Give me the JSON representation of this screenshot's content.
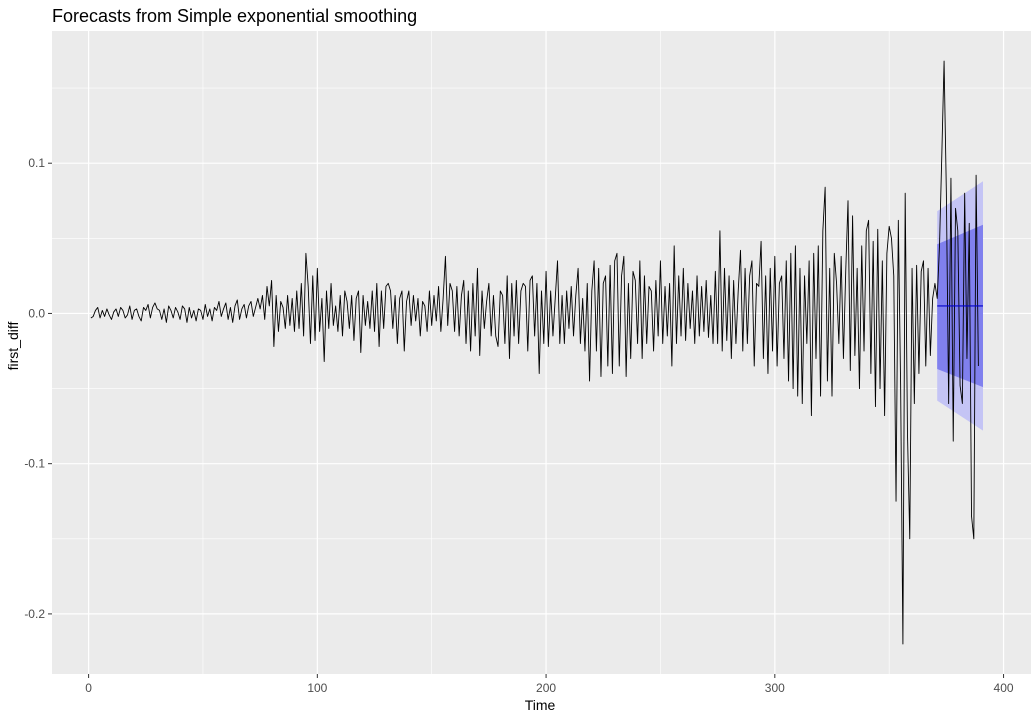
{
  "chart_data": {
    "type": "line",
    "title": "Forecasts from Simple exponential smoothing",
    "xlabel": "Time",
    "ylabel": "first_diff",
    "xlim": [
      -16,
      412
    ],
    "ylim": [
      -0.24,
      0.188
    ],
    "x_ticks": [
      {
        "value": 0,
        "label": "0"
      },
      {
        "value": 100,
        "label": "100"
      },
      {
        "value": 200,
        "label": "200"
      },
      {
        "value": 300,
        "label": "300"
      },
      {
        "value": 400,
        "label": "400"
      }
    ],
    "y_ticks": [
      {
        "value": -0.2,
        "label": "-0.2"
      },
      {
        "value": -0.1,
        "label": "-0.1"
      },
      {
        "value": 0.0,
        "label": "0.0"
      },
      {
        "value": 0.1,
        "label": "0.1"
      }
    ],
    "x_minor": [
      50,
      150,
      250,
      350
    ],
    "y_minor": [
      -0.15,
      -0.05,
      0.05,
      0.15
    ],
    "grid": true,
    "panel_color": "#ebebeb",
    "grid_color": "#ffffff",
    "series_color": "#000000",
    "forecast_color": "#0000cc",
    "band95_color": "#c4c4f5",
    "band80_color": "#8080ee",
    "series": [
      {
        "x_start": 1,
        "x_step": 1,
        "values": [
          -0.003,
          -0.002,
          0.002,
          0.004,
          -0.003,
          0.002,
          -0.002,
          0.003,
          -0.001,
          -0.004,
          0.001,
          0.003,
          -0.002,
          0.004,
          0.002,
          -0.003,
          -0.001,
          0.005,
          -0.004,
          0.002,
          0.003,
          -0.002,
          -0.005,
          0.004,
          0.002,
          0.006,
          -0.003,
          0.004,
          0.007,
          0.003,
          0.002,
          -0.004,
          0.003,
          -0.006,
          0.005,
          0.002,
          -0.003,
          0.004,
          0.001,
          -0.004,
          0.005,
          0.003,
          -0.006,
          0.004,
          -0.003,
          0.002,
          -0.005,
          0.003,
          0.002,
          -0.004,
          0.006,
          -0.002,
          0.003,
          -0.005,
          0.004,
          0.002,
          0.008,
          -0.002,
          0.003,
          0.007,
          -0.004,
          0.004,
          -0.006,
          0.005,
          0.009,
          -0.004,
          0.003,
          0.006,
          -0.003,
          0.005,
          0.008,
          -0.002,
          0.004,
          0.01,
          0.003,
          0.012,
          -0.004,
          0.018,
          0.005,
          0.022,
          -0.022,
          0.012,
          -0.012,
          0.008,
          0.004,
          -0.01,
          0.012,
          -0.008,
          0.01,
          -0.012,
          0.015,
          -0.01,
          0.02,
          -0.015,
          0.04,
          0.018,
          -0.02,
          0.025,
          -0.018,
          0.03,
          -0.012,
          0.01,
          -0.032,
          0.015,
          -0.01,
          0.02,
          -0.008,
          0.005,
          -0.012,
          0.012,
          -0.015,
          0.015,
          0.008,
          -0.01,
          0.012,
          -0.018,
          0.01,
          0.015,
          -0.026,
          0.012,
          -0.008,
          0.008,
          -0.01,
          0.015,
          -0.012,
          0.02,
          -0.022,
          0.015,
          -0.01,
          0.018,
          0.02,
          0.015,
          -0.01,
          0.012,
          -0.02,
          0.01,
          0.015,
          -0.025,
          0.008,
          0.015,
          -0.008,
          0.012,
          -0.005,
          0.01,
          -0.015,
          0.008,
          0.005,
          -0.012,
          0.015,
          -0.008,
          0.012,
          -0.005,
          0.018,
          -0.012,
          0.01,
          0.038,
          -0.008,
          0.02,
          0.015,
          -0.012,
          0.018,
          -0.015,
          0.012,
          0.022,
          -0.02,
          0.015,
          -0.025,
          0.02,
          -0.015,
          0.03,
          -0.028,
          0.015,
          -0.01,
          0.008,
          0.02,
          -0.015,
          0.012,
          -0.015,
          -0.022,
          0.015,
          0.012,
          -0.02,
          0.025,
          -0.03,
          0.02,
          -0.015,
          0.022,
          -0.02,
          0.015,
          0.02,
          0.018,
          -0.025,
          0.022,
          0.025,
          -0.015,
          0.02,
          -0.04,
          0.015,
          -0.02,
          0.028,
          -0.022,
          0.015,
          -0.015,
          0.01,
          0.035,
          -0.02,
          0.012,
          -0.02,
          0.015,
          -0.01,
          0.018,
          -0.015,
          0.012,
          0.03,
          -0.02,
          0.01,
          -0.025,
          0.02,
          -0.045,
          0.015,
          0.035,
          -0.025,
          0.03,
          -0.042,
          0.02,
          0.025,
          -0.035,
          0.032,
          -0.04,
          0.035,
          0.04,
          -0.035,
          0.025,
          0.038,
          -0.042,
          0.02,
          -0.03,
          0.028,
          0.022,
          -0.02,
          0.035,
          -0.03,
          0.025,
          -0.02,
          0.018,
          0.015,
          -0.025,
          0.022,
          -0.015,
          0.035,
          -0.02,
          0.018,
          -0.015,
          0.02,
          -0.035,
          0.045,
          -0.02,
          0.025,
          -0.015,
          0.03,
          -0.018,
          0.02,
          -0.01,
          0.015,
          -0.02,
          0.025,
          -0.015,
          0.018,
          -0.012,
          0.022,
          -0.016,
          0.012,
          -0.02,
          0.028,
          -0.02,
          0.055,
          -0.025,
          0.03,
          -0.018,
          0.025,
          -0.03,
          0.022,
          -0.02,
          0.015,
          0.042,
          -0.025,
          0.03,
          -0.02,
          0.025,
          0.035,
          -0.035,
          0.02,
          0.018,
          0.048,
          -0.03,
          0.025,
          -0.04,
          0.03,
          -0.025,
          0.038,
          -0.035,
          0.02,
          0.025,
          -0.03,
          0.035,
          -0.045,
          0.04,
          -0.05,
          0.045,
          -0.055,
          0.03,
          -0.06,
          0.025,
          -0.02,
          0.035,
          -0.068,
          0.04,
          -0.03,
          0.045,
          -0.055,
          0.055,
          0.084,
          -0.045,
          0.03,
          -0.055,
          0.04,
          0.02,
          -0.02,
          0.038,
          -0.03,
          0.028,
          0.075,
          -0.038,
          0.065,
          -0.028,
          0.03,
          -0.05,
          0.045,
          -0.025,
          0.055,
          0.062,
          -0.04,
          0.048,
          -0.062,
          0.056,
          -0.05,
          0.035,
          -0.068,
          0.04,
          0.058,
          0.05,
          0.025,
          -0.125,
          0.062,
          -0.048,
          -0.22,
          0.08,
          -0.08,
          -0.15,
          0.03,
          -0.06,
          0.032,
          -0.04,
          0.028,
          0.035,
          -0.035,
          0.03,
          -0.028,
          0.01,
          0.02,
          0.01,
          0.045,
          0.105,
          0.168,
          0.08,
          -0.06,
          0.09,
          -0.085,
          0.07,
          0.055,
          -0.048,
          -0.06,
          0.08,
          -0.03,
          0.06,
          -0.135,
          -0.15,
          0.092,
          -0.035
        ]
      }
    ],
    "forecast": {
      "x": [
        371,
        391
      ],
      "point": 0.005,
      "lo80": [
        -0.037,
        -0.049
      ],
      "hi80": [
        0.046,
        0.059
      ],
      "lo95": [
        -0.058,
        -0.078
      ],
      "hi95": [
        0.068,
        0.088
      ]
    }
  }
}
